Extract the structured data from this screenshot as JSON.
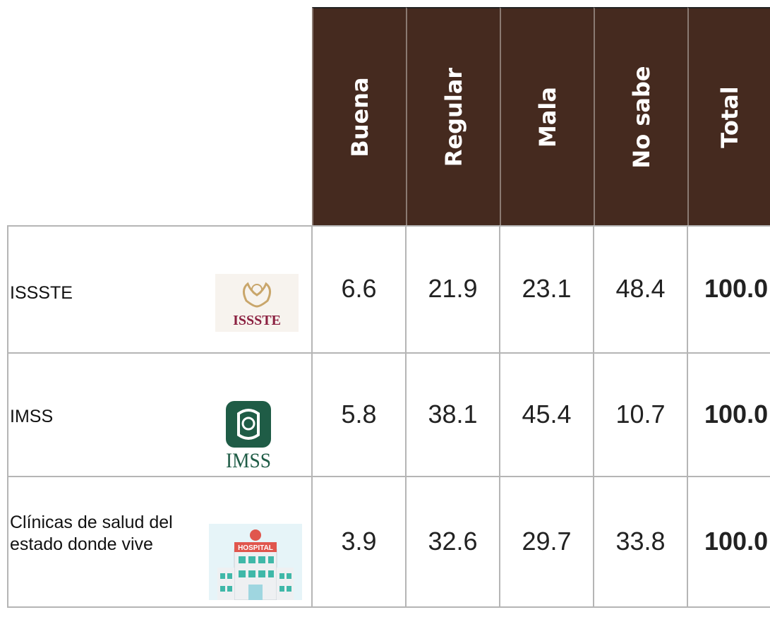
{
  "table": {
    "headers": [
      "Buena",
      "Regular",
      "Mala",
      "No sabe",
      "Total"
    ],
    "rows": [
      {
        "label": "ISSSTE",
        "logo": "ISSSTE",
        "values": [
          "6.6",
          "21.9",
          "23.1",
          "48.4",
          "100.0"
        ]
      },
      {
        "label": "IMSS",
        "logo": "IMSS",
        "values": [
          "5.8",
          "38.1",
          "45.4",
          "10.7",
          "100.0"
        ]
      },
      {
        "label": "Clínicas de salud del estado donde vive",
        "logo": "HOSPITAL",
        "values": [
          "3.9",
          "32.6",
          "29.7",
          "33.8",
          "100.0"
        ]
      }
    ]
  }
}
